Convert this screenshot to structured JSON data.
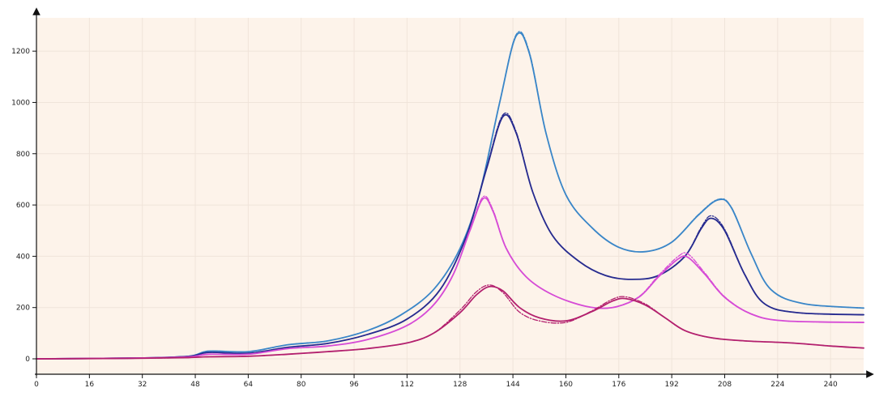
{
  "chart_data": {
    "type": "line",
    "title": "",
    "xlabel": "",
    "ylabel": "",
    "xlim": [
      0,
      250
    ],
    "ylim": [
      -60,
      1330
    ],
    "x_ticks": [
      0,
      16,
      32,
      48,
      64,
      80,
      96,
      112,
      128,
      144,
      160,
      176,
      192,
      208,
      224,
      240
    ],
    "y_ticks": [
      0,
      200,
      400,
      600,
      800,
      1000,
      1200
    ],
    "grid": true,
    "legend": "none",
    "background": "#fdf3ea",
    "series": [
      {
        "color": "#3a86c8",
        "style": "solid",
        "points": [
          [
            0,
            0
          ],
          [
            30,
            3
          ],
          [
            46,
            10
          ],
          [
            52,
            30
          ],
          [
            64,
            28
          ],
          [
            76,
            55
          ],
          [
            88,
            70
          ],
          [
            100,
            110
          ],
          [
            110,
            170
          ],
          [
            120,
            270
          ],
          [
            128,
            430
          ],
          [
            134,
            650
          ],
          [
            140,
            1000
          ],
          [
            145,
            1260
          ],
          [
            149,
            1190
          ],
          [
            154,
            880
          ],
          [
            160,
            640
          ],
          [
            168,
            510
          ],
          [
            176,
            435
          ],
          [
            184,
            418
          ],
          [
            192,
            455
          ],
          [
            200,
            560
          ],
          [
            206,
            620
          ],
          [
            210,
            590
          ],
          [
            216,
            410
          ],
          [
            222,
            270
          ],
          [
            232,
            215
          ],
          [
            250,
            198
          ]
        ]
      },
      {
        "color": "#3a86c8",
        "style": "dashed",
        "points": [
          [
            0,
            0
          ],
          [
            30,
            3
          ],
          [
            46,
            10
          ],
          [
            52,
            30
          ],
          [
            64,
            28
          ],
          [
            76,
            55
          ],
          [
            88,
            70
          ],
          [
            100,
            110
          ],
          [
            110,
            170
          ],
          [
            120,
            270
          ],
          [
            128,
            430
          ],
          [
            134,
            650
          ],
          [
            140,
            1000
          ],
          [
            145,
            1265
          ],
          [
            149,
            1195
          ],
          [
            154,
            880
          ],
          [
            160,
            640
          ],
          [
            168,
            510
          ],
          [
            176,
            435
          ],
          [
            184,
            418
          ],
          [
            192,
            455
          ],
          [
            200,
            562
          ],
          [
            206,
            622
          ],
          [
            210,
            592
          ],
          [
            216,
            410
          ],
          [
            222,
            270
          ],
          [
            232,
            215
          ],
          [
            250,
            198
          ]
        ]
      },
      {
        "color": "#262b8f",
        "style": "solid",
        "points": [
          [
            0,
            0
          ],
          [
            30,
            3
          ],
          [
            46,
            10
          ],
          [
            52,
            25
          ],
          [
            64,
            22
          ],
          [
            76,
            45
          ],
          [
            88,
            60
          ],
          [
            100,
            95
          ],
          [
            112,
            155
          ],
          [
            122,
            270
          ],
          [
            130,
            480
          ],
          [
            136,
            740
          ],
          [
            141,
            945
          ],
          [
            145,
            880
          ],
          [
            150,
            650
          ],
          [
            156,
            480
          ],
          [
            164,
            380
          ],
          [
            172,
            325
          ],
          [
            180,
            310
          ],
          [
            188,
            325
          ],
          [
            196,
            400
          ],
          [
            201,
            510
          ],
          [
            204,
            548
          ],
          [
            208,
            500
          ],
          [
            214,
            330
          ],
          [
            220,
            215
          ],
          [
            230,
            180
          ],
          [
            250,
            172
          ]
        ]
      },
      {
        "color": "#262b8f",
        "style": "dashed",
        "points": [
          [
            0,
            0
          ],
          [
            30,
            3
          ],
          [
            46,
            10
          ],
          [
            52,
            25
          ],
          [
            64,
            22
          ],
          [
            76,
            45
          ],
          [
            88,
            60
          ],
          [
            100,
            95
          ],
          [
            112,
            155
          ],
          [
            122,
            270
          ],
          [
            130,
            480
          ],
          [
            136,
            745
          ],
          [
            141,
            952
          ],
          [
            145,
            885
          ],
          [
            150,
            650
          ],
          [
            156,
            480
          ],
          [
            164,
            380
          ],
          [
            172,
            325
          ],
          [
            180,
            310
          ],
          [
            188,
            325
          ],
          [
            196,
            402
          ],
          [
            201,
            515
          ],
          [
            204,
            558
          ],
          [
            208,
            505
          ],
          [
            214,
            332
          ],
          [
            220,
            216
          ],
          [
            230,
            180
          ],
          [
            250,
            172
          ]
        ]
      },
      {
        "color": "#d64bd6",
        "style": "solid",
        "points": [
          [
            0,
            0
          ],
          [
            30,
            3
          ],
          [
            46,
            8
          ],
          [
            52,
            18
          ],
          [
            64,
            18
          ],
          [
            76,
            40
          ],
          [
            88,
            50
          ],
          [
            100,
            75
          ],
          [
            112,
            130
          ],
          [
            120,
            210
          ],
          [
            126,
            330
          ],
          [
            131,
            500
          ],
          [
            135,
            625
          ],
          [
            138,
            575
          ],
          [
            142,
            430
          ],
          [
            148,
            320
          ],
          [
            156,
            250
          ],
          [
            166,
            205
          ],
          [
            174,
            200
          ],
          [
            182,
            240
          ],
          [
            188,
            320
          ],
          [
            194,
            390
          ],
          [
            197,
            395
          ],
          [
            202,
            330
          ],
          [
            208,
            240
          ],
          [
            216,
            175
          ],
          [
            226,
            148
          ],
          [
            250,
            142
          ]
        ]
      },
      {
        "color": "#d64bd6",
        "style": "dashed",
        "points": [
          [
            0,
            0
          ],
          [
            30,
            3
          ],
          [
            46,
            8
          ],
          [
            52,
            18
          ],
          [
            64,
            18
          ],
          [
            76,
            40
          ],
          [
            88,
            50
          ],
          [
            100,
            75
          ],
          [
            112,
            130
          ],
          [
            120,
            210
          ],
          [
            126,
            330
          ],
          [
            131,
            505
          ],
          [
            135,
            632
          ],
          [
            138,
            580
          ],
          [
            142,
            432
          ],
          [
            148,
            320
          ],
          [
            156,
            250
          ],
          [
            166,
            205
          ],
          [
            174,
            200
          ],
          [
            182,
            242
          ],
          [
            188,
            325
          ],
          [
            194,
            400
          ],
          [
            197,
            408
          ],
          [
            202,
            335
          ],
          [
            208,
            242
          ],
          [
            216,
            176
          ],
          [
            226,
            148
          ],
          [
            250,
            142
          ]
        ]
      },
      {
        "color": "#b3206e",
        "style": "solid",
        "points": [
          [
            0,
            0
          ],
          [
            30,
            2
          ],
          [
            46,
            5
          ],
          [
            52,
            8
          ],
          [
            64,
            10
          ],
          [
            76,
            18
          ],
          [
            88,
            28
          ],
          [
            100,
            40
          ],
          [
            112,
            62
          ],
          [
            120,
            100
          ],
          [
            128,
            180
          ],
          [
            133,
            250
          ],
          [
            137,
            282
          ],
          [
            141,
            265
          ],
          [
            146,
            200
          ],
          [
            152,
            160
          ],
          [
            160,
            148
          ],
          [
            168,
            185
          ],
          [
            174,
            225
          ],
          [
            178,
            235
          ],
          [
            184,
            210
          ],
          [
            190,
            160
          ],
          [
            196,
            110
          ],
          [
            204,
            82
          ],
          [
            214,
            70
          ],
          [
            228,
            62
          ],
          [
            240,
            50
          ],
          [
            250,
            42
          ]
        ]
      },
      {
        "color": "#b3206e",
        "style": "dashed",
        "points": [
          [
            0,
            0
          ],
          [
            30,
            2
          ],
          [
            46,
            5
          ],
          [
            52,
            8
          ],
          [
            64,
            10
          ],
          [
            76,
            18
          ],
          [
            88,
            28
          ],
          [
            100,
            40
          ],
          [
            112,
            62
          ],
          [
            120,
            100
          ],
          [
            128,
            190
          ],
          [
            133,
            262
          ],
          [
            137,
            288
          ],
          [
            141,
            258
          ],
          [
            146,
            182
          ],
          [
            152,
            148
          ],
          [
            160,
            142
          ],
          [
            168,
            188
          ],
          [
            174,
            232
          ],
          [
            178,
            242
          ],
          [
            184,
            214
          ],
          [
            190,
            160
          ],
          [
            196,
            110
          ],
          [
            204,
            82
          ],
          [
            214,
            70
          ],
          [
            228,
            62
          ],
          [
            240,
            50
          ],
          [
            250,
            42
          ]
        ]
      }
    ]
  }
}
